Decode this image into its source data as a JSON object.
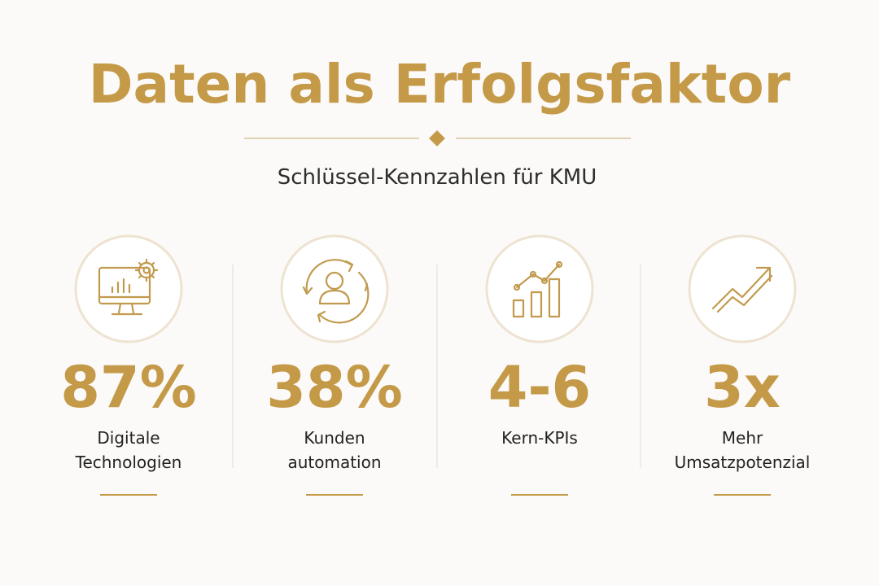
{
  "header": {
    "title": "Daten als Erfolgsfaktor",
    "subtitle": "Schlüssel-Kennzahlen für KMU"
  },
  "stats": [
    {
      "value": "87%",
      "label": [
        "Digitale",
        "Technologien"
      ]
    },
    {
      "value": "38%",
      "label": [
        "Kunden",
        "automation"
      ]
    },
    {
      "value": "4-6",
      "label": [
        "Kern-KPIs"
      ]
    },
    {
      "value": "3x",
      "label": [
        "Mehr",
        "Umsatzpotenzial"
      ]
    }
  ]
}
